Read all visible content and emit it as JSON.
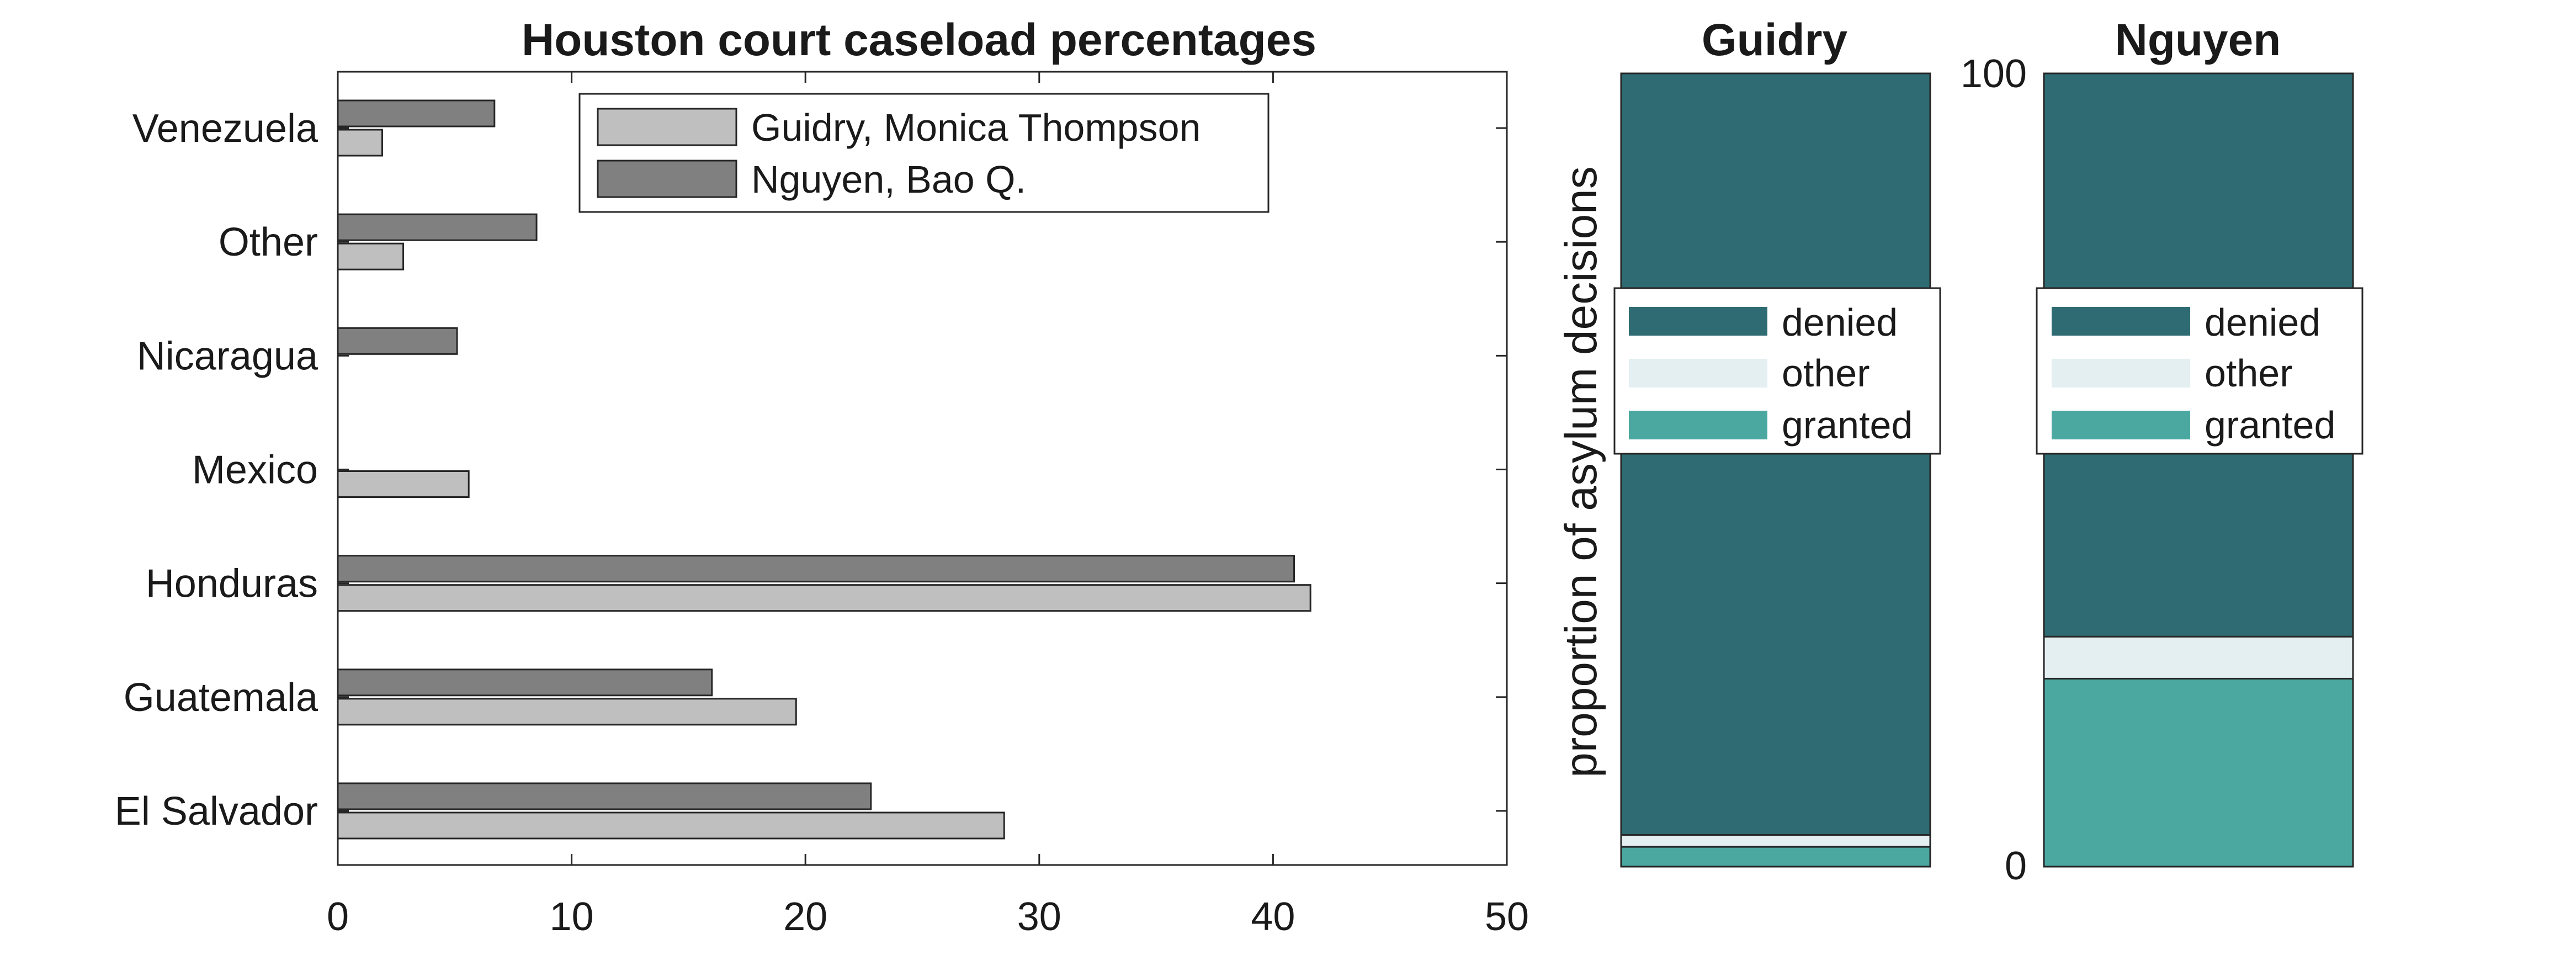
{
  "chart_data": [
    {
      "type": "bar",
      "orientation": "horizontal",
      "title": "Houston court caseload percentages",
      "xlabel": "",
      "ylabel": "",
      "xlim": [
        0,
        50
      ],
      "xticks": [
        "0",
        "10",
        "20",
        "30",
        "40",
        "50"
      ],
      "categories": [
        "Venezuela",
        "Other",
        "Nicaragua",
        "Mexico",
        "Honduras",
        "Guatemala",
        "El Salvador"
      ],
      "series": [
        {
          "name": "Guidry, Monica Thompson",
          "color": "#bfbfbf",
          "values": [
            1.9,
            2.8,
            0,
            5.6,
            41.6,
            19.6,
            28.5
          ]
        },
        {
          "name": "Nguyen, Bao Q.",
          "color": "#808080",
          "values": [
            6.7,
            8.5,
            5.1,
            0,
            40.9,
            16.0,
            22.8
          ]
        }
      ],
      "legend": "top-center",
      "grid": false
    },
    {
      "type": "bar",
      "stacked": true,
      "title": "Guidry",
      "ylabel": "proportion of asylum decisions",
      "ylim": [
        0,
        100
      ],
      "series": [
        {
          "name": "granted",
          "color": "#4aa8a0",
          "value": 2.5
        },
        {
          "name": "other",
          "color": "#e3eff0",
          "value": 1.5
        },
        {
          "name": "denied",
          "color": "#2e6b72",
          "value": 96.0
        }
      ],
      "legend": "center"
    },
    {
      "type": "bar",
      "stacked": true,
      "title": "Nguyen",
      "ylim": [
        0,
        100
      ],
      "yticks": [
        "0",
        "100"
      ],
      "series": [
        {
          "name": "granted",
          "color": "#4aa8a0",
          "value": 23.7
        },
        {
          "name": "other",
          "color": "#e3eff0",
          "value": 5.3
        },
        {
          "name": "denied",
          "color": "#2e6b72",
          "value": 71.0
        }
      ],
      "legend": "center"
    }
  ]
}
